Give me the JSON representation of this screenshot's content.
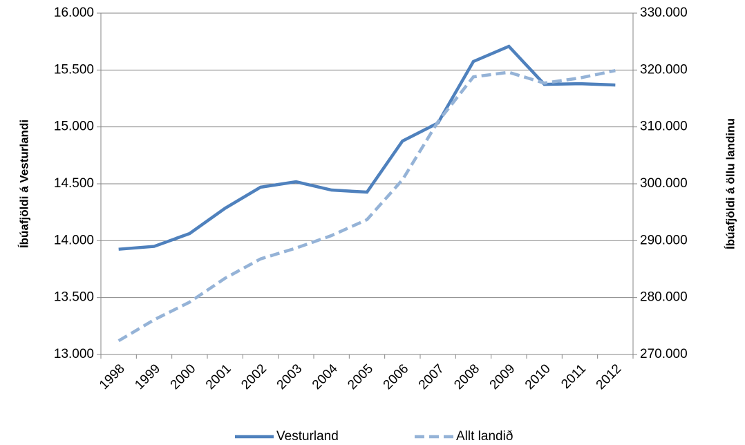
{
  "chart_data": {
    "type": "line",
    "ylabel": "Íbúafjöldi á Vesturlandi",
    "y2label": "Íbúafjöldi á öllu landinu",
    "categories": [
      "1998",
      "1999",
      "2000",
      "2001",
      "2002",
      "2003",
      "2004",
      "2005",
      "2006",
      "2007",
      "2008",
      "2009",
      "2010",
      "2011",
      "2012"
    ],
    "series": [
      {
        "name": "Vesturland",
        "color": "#4f81bd",
        "dashed": false,
        "axis": "y",
        "values": [
          13925,
          13950,
          14063,
          14285,
          14470,
          14518,
          14445,
          14427,
          14876,
          15034,
          15575,
          15708,
          15374,
          15380,
          15368
        ]
      },
      {
        "name": "Allt landið",
        "color": "#95b3d7",
        "dashed": true,
        "axis": "y2",
        "values": [
          272400,
          276100,
          279200,
          283400,
          286800,
          288700,
          290900,
          293700,
          300700,
          310900,
          318800,
          319600,
          317700,
          318600,
          319900
        ]
      }
    ],
    "ylim": [
      13000,
      16000
    ],
    "yticks": [
      {
        "value": 13000,
        "label": "13.000"
      },
      {
        "value": 13500,
        "label": "13.500"
      },
      {
        "value": 14000,
        "label": "14.000"
      },
      {
        "value": 14500,
        "label": "14.500"
      },
      {
        "value": 15000,
        "label": "15.000"
      },
      {
        "value": 15500,
        "label": "15.500"
      },
      {
        "value": 16000,
        "label": "16.000"
      }
    ],
    "y2lim": [
      270000,
      330000
    ],
    "y2ticks": [
      {
        "value": 270000,
        "label": "270.000"
      },
      {
        "value": 280000,
        "label": "280.000"
      },
      {
        "value": 290000,
        "label": "290.000"
      },
      {
        "value": 300000,
        "label": "300.000"
      },
      {
        "value": 310000,
        "label": "310.000"
      },
      {
        "value": 320000,
        "label": "320.000"
      },
      {
        "value": 330000,
        "label": "330.000"
      }
    ],
    "grid": true,
    "legend": "bottom"
  }
}
